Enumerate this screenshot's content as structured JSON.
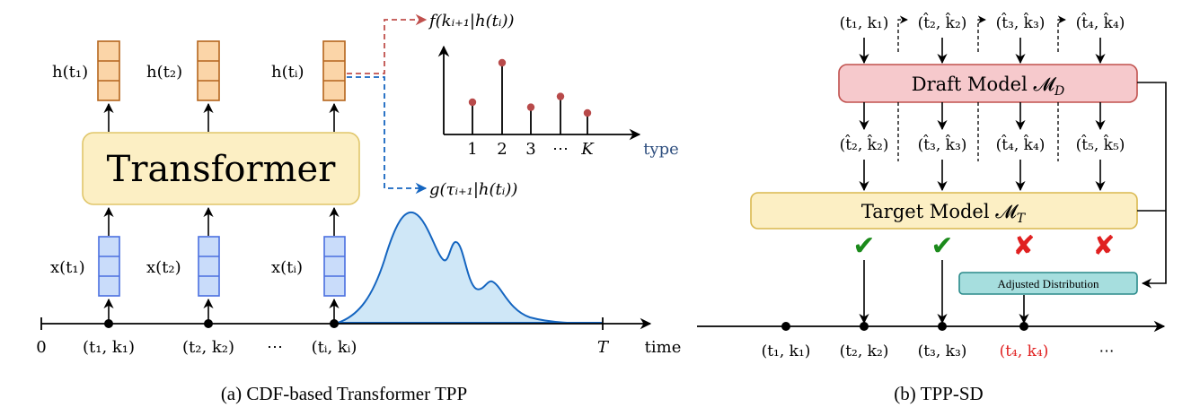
{
  "panel_a": {
    "caption": "(a) CDF-based Transformer TPP",
    "transformer_label": "Transformer",
    "hidden_labels": [
      "h(t₁)",
      "h(t₂)",
      "h(tᵢ)"
    ],
    "input_labels": [
      "x(t₁)",
      "x(t₂)",
      "x(tᵢ)"
    ],
    "type_dist_label": "f(kᵢ₊₁|h(tᵢ))",
    "time_dist_label": "g(τᵢ₊₁|h(tᵢ))",
    "type_ticks": [
      "1",
      "2",
      "3",
      "⋯",
      "K"
    ],
    "type_axis_label": "type",
    "stem_values": [
      0.45,
      1.0,
      0.38,
      0.53,
      0.3
    ],
    "timeline_labels": [
      "(t₁, k₁)",
      "(t₂, k₂)",
      "⋯",
      "(tᵢ, kᵢ)"
    ],
    "axis_start": "0",
    "axis_end": "T",
    "time_axis_label": "time"
  },
  "panel_b": {
    "caption": "(b) TPP-SD",
    "draft_input_labels": [
      "(t₁, k₁)",
      "(t̂₂, k̂₂)",
      "(t̂₃, k̂₃)",
      "(t̂₄, k̂₄)"
    ],
    "draft_model_label": "Draft Model 𝓜",
    "draft_model_sub": "D",
    "draft_output_labels": [
      "(t̂₂, k̂₂)",
      "(t̂₃, k̂₃)",
      "(t̂₄, k̂₄)",
      "(t̂₅, k̂₅)"
    ],
    "target_model_label": "Target Model 𝓜",
    "target_model_sub": "T",
    "verdicts": [
      "✔",
      "✔",
      "✘",
      "✘"
    ],
    "adjusted_label": "Adjusted Distribution",
    "timeline_labels": [
      "(t₁, k₁)",
      "(t₂, k₂)",
      "(t₃, k₃)",
      "(t₄, k₄)",
      "⋯"
    ]
  },
  "colors": {
    "hidden_fill": "#fbd5a8",
    "hidden_stroke": "#b5651d",
    "input_fill": "#c9dcfa",
    "input_stroke": "#4a6fe0",
    "transformer_fill": "#fcefc4",
    "transformer_stroke": "#e0c66a",
    "draft_fill": "#f6c9cc",
    "draft_stroke": "#c0504d",
    "target_fill": "#fcefc4",
    "target_stroke": "#d9b84f",
    "adjusted_fill": "#a6dede",
    "adjusted_stroke": "#2a8a8a",
    "density_fill": "#cfe7f7",
    "density_stroke": "#1565c0",
    "stem_dot": "#b84a4a",
    "red_arrow": "#c0504d",
    "blue_arrow": "#1565c0",
    "check_green": "#1b8a1b",
    "cross_red": "#e02020",
    "highlight_red": "#e02020",
    "type_label": "#2f4f7f"
  }
}
